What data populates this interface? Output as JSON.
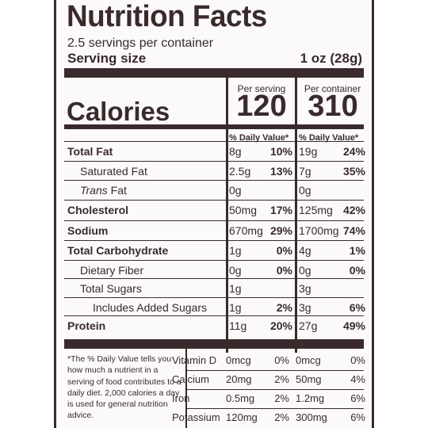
{
  "panel": {
    "title": "Nutrition Facts",
    "servings_per_container": "2.5 servings per container",
    "serving_size_label": "Serving size",
    "serving_size_value": "1 oz (28g)"
  },
  "columns": {
    "per_serving": "Per serving",
    "per_container": "Per container",
    "daily_value_header": "% Daily Value*"
  },
  "calories": {
    "label": "Calories",
    "per_serving": "120",
    "per_container": "310"
  },
  "nutrients": [
    {
      "name": "Total Fat",
      "bold": true,
      "serving_amount": "8g",
      "serving_dv": "10%",
      "container_amount": "19g",
      "container_dv": "24%"
    },
    {
      "name": "Saturated Fat",
      "bold": false,
      "serving_amount": "2.5g",
      "serving_dv": "13%",
      "container_amount": "7g",
      "container_dv": "35%"
    },
    {
      "name_italic": "Trans",
      "name_suffix": " Fat",
      "bold": false,
      "serving_amount": "0g",
      "serving_dv": "",
      "container_amount": "0g",
      "container_dv": ""
    },
    {
      "name": "Cholesterol",
      "bold": true,
      "serving_amount": "50mg",
      "serving_dv": "17%",
      "container_amount": "125mg",
      "container_dv": "42%"
    },
    {
      "name": "Sodium",
      "bold": true,
      "serving_amount": "670mg",
      "serving_dv": "29%",
      "container_amount": "1700mg",
      "container_dv": "74%"
    },
    {
      "name": "Total Carbohydrate",
      "bold": true,
      "serving_amount": "1g",
      "serving_dv": "0%",
      "container_amount": "4g",
      "container_dv": "1%"
    },
    {
      "name": "Dietary Fiber",
      "bold": false,
      "serving_amount": "0g",
      "serving_dv": "0%",
      "container_amount": "0g",
      "container_dv": "0%"
    },
    {
      "name": "Total Sugars",
      "bold": false,
      "serving_amount": "1g",
      "serving_dv": "",
      "container_amount": "3g",
      "container_dv": ""
    },
    {
      "name": "Includes Added Sugars",
      "bold": false,
      "serving_amount": "1g",
      "serving_dv": "2%",
      "container_amount": "3g",
      "container_dv": "6%"
    },
    {
      "name": "Protein",
      "bold": true,
      "serving_amount": "11g",
      "serving_dv": "20%",
      "container_amount": "27g",
      "container_dv": "49%"
    }
  ],
  "minerals": [
    {
      "name": "Vitamin D",
      "serving_amount": "0mcg",
      "serving_dv": "0%",
      "container_amount": "0mcg",
      "container_dv": "0%"
    },
    {
      "name": "Calcium",
      "serving_amount": "20mg",
      "serving_dv": "2%",
      "container_amount": "50mg",
      "container_dv": "4%"
    },
    {
      "name": "Iron",
      "serving_amount": "0.5mg",
      "serving_dv": "2%",
      "container_amount": "1.2mg",
      "container_dv": "6%"
    },
    {
      "name": "Potassium",
      "serving_amount": "120mg",
      "serving_dv": "2%",
      "container_amount": "300mg",
      "container_dv": "6%"
    }
  ],
  "footnote": "*The % Daily Value tells you how much a nutrient in a serving of food contributes to a daily diet. 2,000 calories a day is used for general nutrition advice.",
  "colors": {
    "ink": "#3a2a2c",
    "background": "#fbf9f9"
  }
}
